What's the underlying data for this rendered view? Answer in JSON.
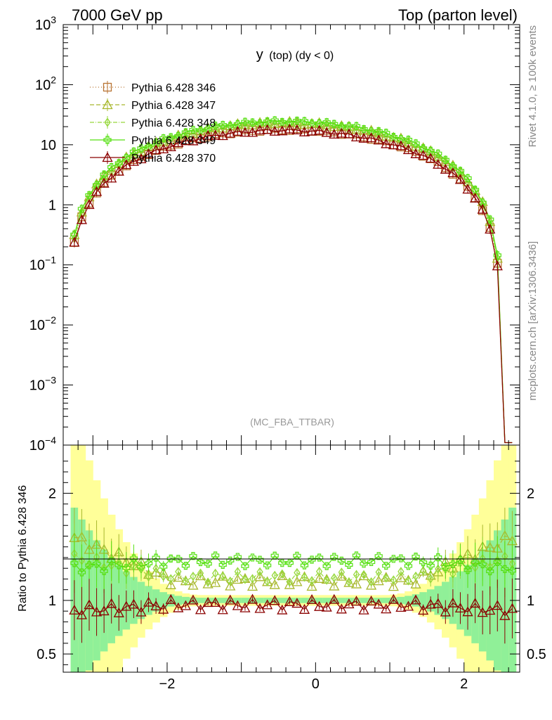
{
  "header": {
    "left": "7000 GeV pp",
    "right": "Top (parton level)"
  },
  "side_labels": {
    "upper": "Rivet 4.1.0, ≥ 100k events",
    "lower": "mcplots.cern.ch [arXiv:1306.3436]"
  },
  "colors": {
    "p346": "#b87333",
    "p347": "#a8b82e",
    "p348": "#96d83c",
    "p349": "#55e010",
    "p370": "#8b0000",
    "band_green": "#90f098",
    "band_yellow": "#ffff99"
  },
  "chart_data": [
    {
      "type": "line",
      "title": "y (top) (dy < 0)",
      "title_main": "y",
      "title_sub": "(top) (dy < 0)",
      "watermark": "(MC_FBA_TTBAR)",
      "yscale": "log",
      "ylim": [
        0.0001,
        1000
      ],
      "xlim": [
        -3.4,
        2.75
      ],
      "ytick_labels": [
        {
          "v": 1000,
          "base": "10",
          "exp": "3"
        },
        {
          "v": 100,
          "base": "10",
          "exp": "2"
        },
        {
          "v": 10,
          "base": "10",
          "exp": ""
        },
        {
          "v": 1,
          "base": "1",
          "exp": ""
        },
        {
          "v": 0.1,
          "base": "10",
          "exp": "−1"
        },
        {
          "v": 0.01,
          "base": "10",
          "exp": "−2"
        },
        {
          "v": 0.001,
          "base": "10",
          "exp": "−3"
        },
        {
          "v": 0.0001,
          "base": "10",
          "exp": "−4"
        }
      ],
      "series": [
        {
          "name": "Pythia 6.428 346",
          "color": "#b87333",
          "marker": "square",
          "dash": "1,3",
          "scale": 1.0
        },
        {
          "name": "Pythia 6.428 347",
          "color": "#a8b82e",
          "marker": "triangle",
          "dash": "6,3",
          "scale": 1.3
        },
        {
          "name": "Pythia 6.428 348",
          "color": "#96d83c",
          "marker": "diamond",
          "dash": "6,2,1,2",
          "scale": 1.22
        },
        {
          "name": "Pythia 6.428 349",
          "color": "#55e010",
          "marker": "cross",
          "dash": "",
          "scale": 1.36
        },
        {
          "name": "Pythia 6.428 370",
          "color": "#8b0000",
          "marker": "triangle",
          "dash": "",
          "scale": 0.97
        }
      ]
    },
    {
      "type": "line",
      "ylabel": "Ratio to Pythia 6.428 346",
      "ylim": [
        0.33,
        2.45
      ],
      "xlim": [
        -3.4,
        2.75
      ],
      "ytick_labels": [
        {
          "v": 2,
          "label": "2"
        },
        {
          "v": 1,
          "label": "1"
        },
        {
          "v": 0.5,
          "label": "0.5"
        }
      ],
      "xtick_labels": [
        {
          "v": -2,
          "label": "−2"
        },
        {
          "v": 0,
          "label": "0"
        },
        {
          "v": 2,
          "label": "2"
        }
      ],
      "reference": 1,
      "series_ratio_levels": [
        {
          "name": "Pythia 6.428 347",
          "center": 1.18,
          "edge": 1.6
        },
        {
          "name": "Pythia 6.428 348",
          "center": 1.22,
          "edge": 1.4
        },
        {
          "name": "Pythia 6.428 349",
          "center": 1.37,
          "edge": 1.3
        },
        {
          "name": "Pythia 6.428 370",
          "center": 0.96,
          "edge": 0.9
        }
      ]
    }
  ]
}
